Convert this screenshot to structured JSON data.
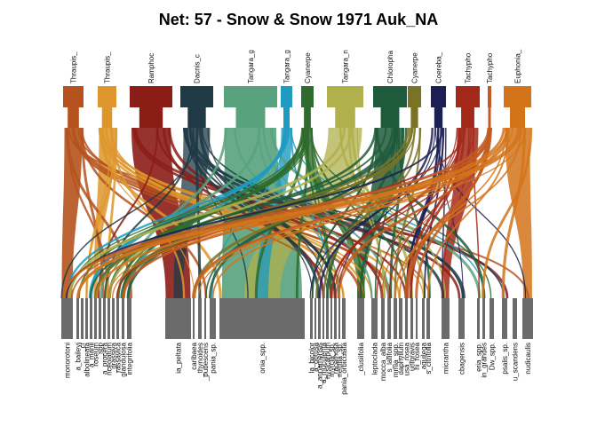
{
  "title": "Net: 57 - Snow & Snow 1971 Auk_NA",
  "colors": {
    "lower_bar": "#6b6b6b",
    "link_alpha": 0.85
  },
  "higher": [
    {
      "label": "Thraupis_",
      "color": "#b5521d"
    },
    {
      "label": "Thraupis_",
      "color": "#de962c"
    },
    {
      "label": "Ramphoc",
      "color": "#8b1d17"
    },
    {
      "label": "Dacnis_c",
      "color": "#1f3a45"
    },
    {
      "label": "Tangara_g",
      "color": "#58a27d"
    },
    {
      "label": "Tangara_g",
      "color": "#1f9bbf"
    },
    {
      "label": "Cyanerpe",
      "color": "#2e6b2c"
    },
    {
      "label": "Tangara_n",
      "color": "#b0b04c"
    },
    {
      "label": "Chloropha",
      "color": "#1e5b3a"
    },
    {
      "label": "Cyanerpe",
      "color": "#7a7326"
    },
    {
      "label": "Coereba_",
      "color": "#1c1f55"
    },
    {
      "label": "Tachypho",
      "color": "#a3291a"
    },
    {
      "label": "Tachypho",
      "color": "#c25a22"
    },
    {
      "label": "Euphonia_",
      "color": "#d4741a"
    }
  ],
  "lower": [
    {
      "label": "monorotoni"
    },
    {
      "label": "a_baileyi"
    },
    {
      "label": "_cf"
    },
    {
      "label": "albolineata"
    },
    {
      "label": "a_manii"
    },
    {
      "label": "roseum"
    },
    {
      "label": "_spp"
    },
    {
      "label": "a_procera"
    },
    {
      "label": "nceolatum"
    },
    {
      "label": "_grassiva"
    },
    {
      "label": "rassavica"
    },
    {
      "label": "glandulosa"
    },
    {
      "label": "integrifolia"
    },
    {
      "label": "ia_peltata"
    },
    {
      "label": "caribaea"
    },
    {
      "label": "_thynoides"
    },
    {
      "label": "_pubescens"
    },
    {
      "label": "pania_sp."
    },
    {
      "label": "onia_spp."
    },
    {
      "label": "la_bicolor"
    },
    {
      "label": "a_obtusa"
    },
    {
      "label": "a_annamensis"
    },
    {
      "label": "a_muculenta"
    },
    {
      "label": "hysicarpum"
    },
    {
      "label": "myrcia_sp."
    },
    {
      "label": "_racemosa"
    },
    {
      "label": "nentila_sp."
    },
    {
      "label": "pania_orbiculata"
    },
    {
      "label": "_clusiifolia"
    },
    {
      "label": "leptoclada"
    },
    {
      "label": "mocca_alba"
    },
    {
      "label": "s_latifolia"
    },
    {
      "label": "mmia_spp."
    },
    {
      "label": "daphyllum"
    },
    {
      "label": "usa_rosea"
    },
    {
      "label": "unigravis"
    },
    {
      "label": "hi_rosea"
    },
    {
      "label": "_aquilega"
    },
    {
      "label": "s_citrifolia"
    },
    {
      "label": "micrantha"
    },
    {
      "label": "cbagensis"
    },
    {
      "label": "eria_spp."
    },
    {
      "label": "in_grandes"
    },
    {
      "label": "Dw_spp."
    },
    {
      "label": "psalis_sp."
    },
    {
      "label": "u_scandens"
    },
    {
      "label": "nudicaulis"
    }
  ]
}
